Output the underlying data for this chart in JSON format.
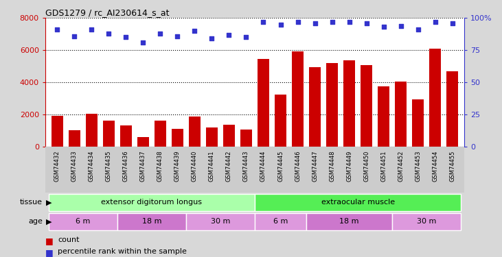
{
  "title": "GDS1279 / rc_AI230614_s_at",
  "samples": [
    "GSM74432",
    "GSM74433",
    "GSM74434",
    "GSM74435",
    "GSM74436",
    "GSM74437",
    "GSM74438",
    "GSM74439",
    "GSM74440",
    "GSM74441",
    "GSM74442",
    "GSM74443",
    "GSM74444",
    "GSM74445",
    "GSM74446",
    "GSM74447",
    "GSM74448",
    "GSM74449",
    "GSM74450",
    "GSM74451",
    "GSM74452",
    "GSM74453",
    "GSM74454",
    "GSM74455"
  ],
  "counts": [
    1900,
    1000,
    2050,
    1600,
    1300,
    600,
    1600,
    1100,
    1850,
    1200,
    1350,
    1050,
    5450,
    3250,
    5900,
    4950,
    5200,
    5350,
    5050,
    3750,
    4050,
    2950,
    6100,
    4700
  ],
  "percentiles": [
    91,
    86,
    91,
    88,
    85,
    81,
    88,
    86,
    90,
    84,
    87,
    85,
    97,
    95,
    97,
    96,
    97,
    97,
    96,
    93,
    94,
    91,
    97,
    96
  ],
  "bar_color": "#cc0000",
  "dot_color": "#3333cc",
  "ylim_left": [
    0,
    8000
  ],
  "ylim_right": [
    0,
    100
  ],
  "yticks_left": [
    0,
    2000,
    4000,
    6000,
    8000
  ],
  "yticks_right": [
    0,
    25,
    50,
    75,
    100
  ],
  "tissue_groups": [
    {
      "label": "extensor digitorum longus",
      "start": 0,
      "end": 12,
      "color": "#aaffaa"
    },
    {
      "label": "extraocular muscle",
      "start": 12,
      "end": 24,
      "color": "#55ee55"
    }
  ],
  "age_groups": [
    {
      "label": "6 m",
      "start": 0,
      "end": 4,
      "color": "#dd88dd"
    },
    {
      "label": "18 m",
      "start": 4,
      "end": 8,
      "color": "#cc66cc"
    },
    {
      "label": "30 m",
      "start": 8,
      "end": 12,
      "color": "#dd88dd"
    },
    {
      "label": "6 m",
      "start": 12,
      "end": 15,
      "color": "#dd88dd"
    },
    {
      "label": "18 m",
      "start": 15,
      "end": 20,
      "color": "#cc66cc"
    },
    {
      "label": "30 m",
      "start": 20,
      "end": 24,
      "color": "#dd88dd"
    }
  ],
  "tissue_label": "tissue",
  "age_label": "age",
  "legend_count": "count",
  "legend_percentile": "percentile rank within the sample",
  "bg_color": "#d8d8d8",
  "plot_bg": "#ffffff",
  "xtick_bg": "#cccccc"
}
